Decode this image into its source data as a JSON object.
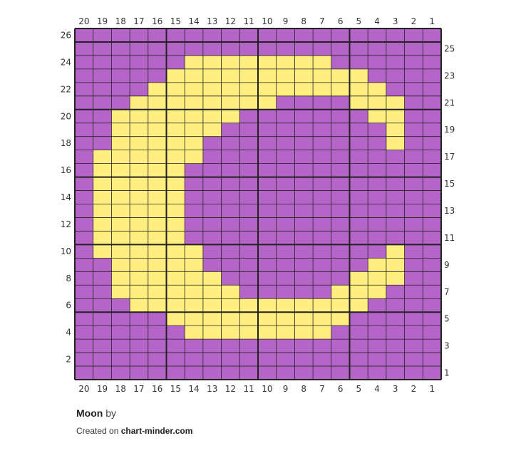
{
  "title": "Moon",
  "by_label": "by",
  "credit_prefix": "Created on",
  "credit_site": "chart-minder.com",
  "colors": {
    "purple": "#b565c8",
    "yellow": "#ffee80",
    "grid_line": "#222222"
  },
  "chart_data": {
    "type": "heatmap",
    "columns": 20,
    "rows": 26,
    "column_labels": [
      "20",
      "19",
      "18",
      "17",
      "16",
      "15",
      "14",
      "13",
      "12",
      "11",
      "10",
      "9",
      "8",
      "7",
      "6",
      "5",
      "4",
      "3",
      "2",
      "1"
    ],
    "row_labels_left": [
      "26",
      "24",
      "22",
      "20",
      "18",
      "16",
      "14",
      "12",
      "10",
      "8",
      "6",
      "4",
      "2"
    ],
    "row_labels_right": [
      "25",
      "23",
      "21",
      "19",
      "17",
      "15",
      "13",
      "11",
      "9",
      "7",
      "5",
      "3",
      "1"
    ],
    "legend": {
      "P": "purple",
      "Y": "yellow"
    },
    "grid": [
      "PPPPPPPPPPPPPPPPPPPP",
      "PPPPPPPPPPPPPPPPPPPP",
      "PPPPPPYYYYYYYYPPPPPP",
      "PPPPPYYYYYYYYYYYPPPP",
      "PPPPYYYYYYYYYYYYYPPP",
      "PPPYYYYYYYYPPPPYYYPP",
      "PPYYYYYYYPPPPPPPYYPP",
      "PPYYYYYYPPPPPPPPPYPP",
      "PPYYYYYPPPPPPPPPPYPP",
      "PYYYYYYPPPPPPPPPPPPP",
      "PYYYYYPPPPPPPPPPPPPP",
      "PYYYYYPPPPPPPPPPPPPP",
      "PYYYYYPPPPPPPPPPPPPP",
      "PYYYYYPPPPPPPPPPPPPP",
      "PYYYYYPPPPPPPPPPPPPP",
      "PYYYYYPPPPPPPPPPPPPP",
      "PYYYYYYPPPPPPPPPPYPP",
      "PPYYYYYPPPPPPPPPYYPP",
      "PPYYYYYYPPPPPPPYYYPP",
      "PPYYYYYYYPPPPPYYYPPP",
      "PPPYYYYYYYYYYYYYPPPP",
      "PPPPPYYYYYYYYYYPPPPP",
      "PPPPPPYYYYYYYYPPPPPP",
      "PPPPPPPPPPPPPPPPPPPP",
      "PPPPPPPPPPPPPPPPPPPP",
      "PPPPPPPPPPPPPPPPPPPP"
    ]
  }
}
